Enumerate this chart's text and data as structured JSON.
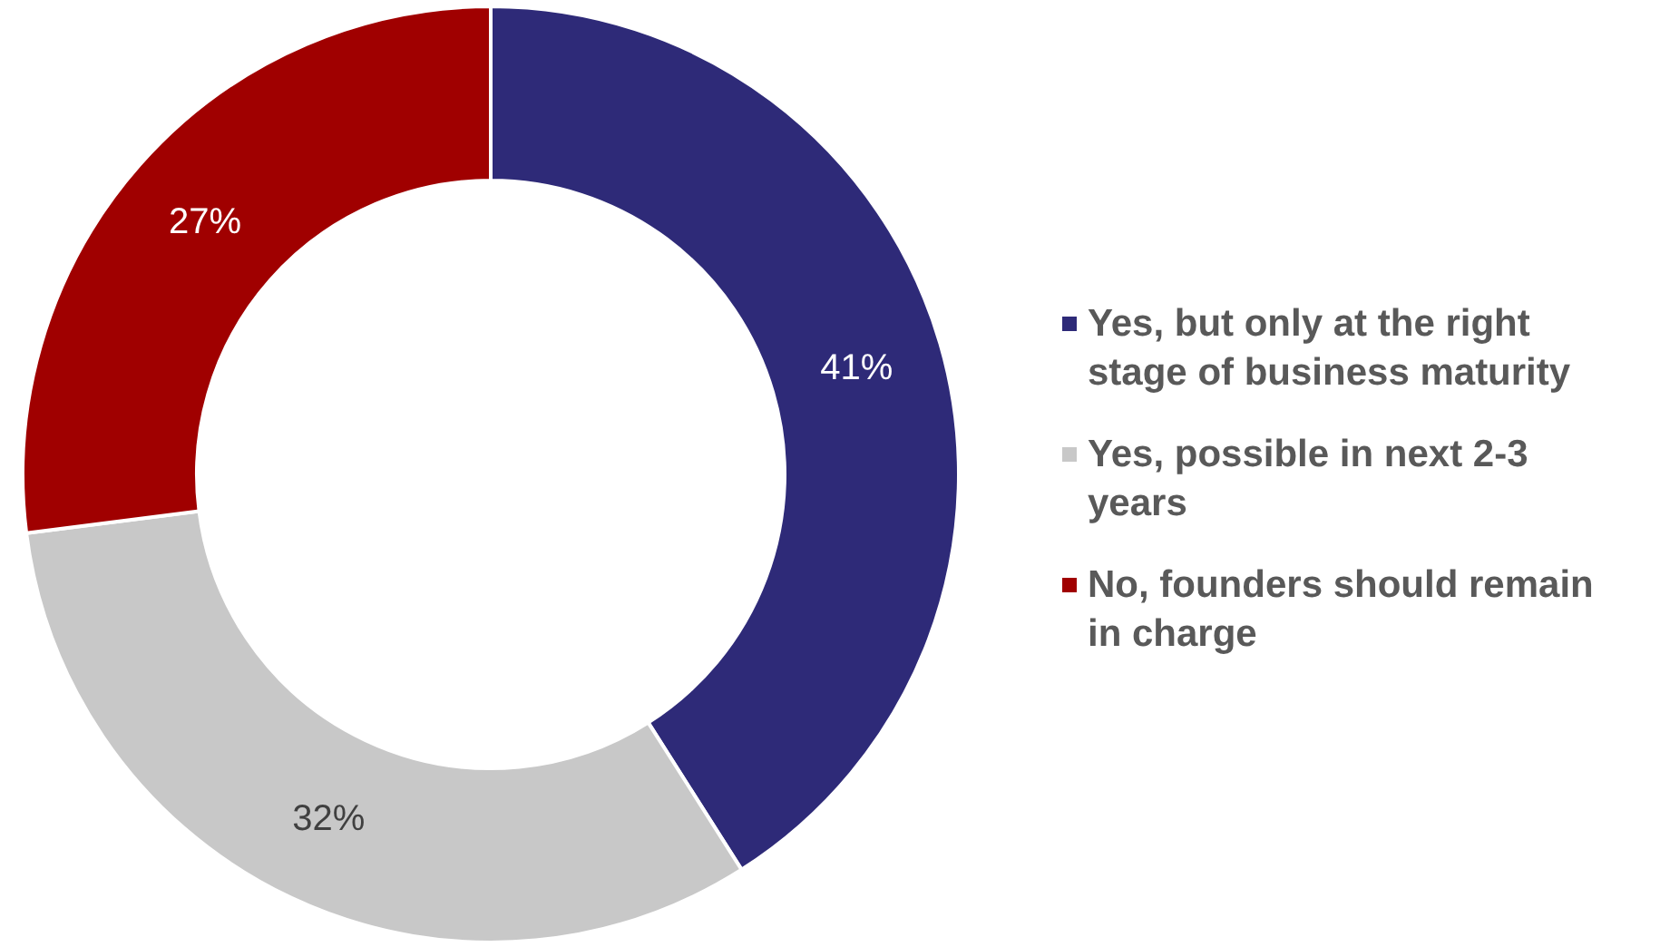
{
  "chart_data": {
    "type": "donut",
    "categories": [
      "Yes, but only at the right stage of business maturity",
      "Yes, possible in next 2-3 years",
      "No, founders should remain in charge"
    ],
    "values": [
      41,
      32,
      27
    ],
    "colors": [
      "#2e2a78",
      "#c8c8c8",
      "#a00000"
    ],
    "value_labels": [
      "41%",
      "32%",
      "27%"
    ],
    "legend": "right"
  }
}
